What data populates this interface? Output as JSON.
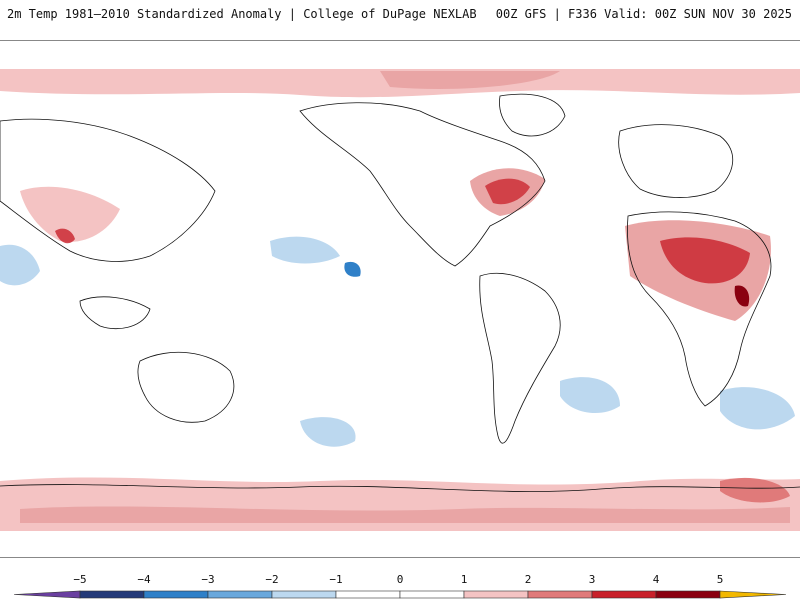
{
  "header": {
    "left": "2m Temp 1981–2010 Standardized Anomaly | College of DuPage NEXLAB",
    "right": "00Z GFS | F336 Valid: 00Z SUN NOV 30 2025"
  },
  "map": {
    "field": "2m temperature standardized anomaly",
    "projection": "equirectangular, Pacific-centered"
  },
  "colorbar": {
    "ticks": [
      "−5",
      "−4",
      "−3",
      "−2",
      "−1",
      "0",
      "1",
      "2",
      "3",
      "4",
      "5"
    ],
    "colors": [
      "#6a3fa0",
      "#243a78",
      "#2f80c8",
      "#6aa8dc",
      "#bcd8ef",
      "#ffffff",
      "#ffffff",
      "#f4c3c3",
      "#e07a7a",
      "#c8202a",
      "#8a0010",
      "#f2b800"
    ]
  }
}
